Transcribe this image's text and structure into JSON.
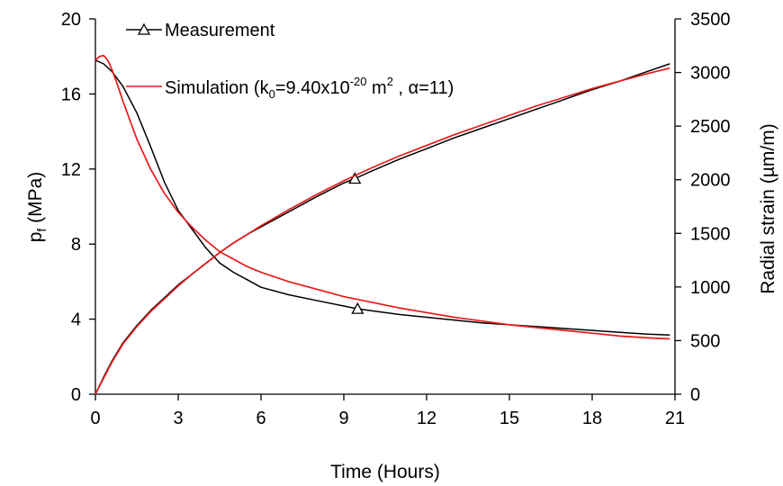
{
  "chart_data": {
    "type": "line",
    "title": "",
    "xlabel": "Time (Hours)",
    "ylabel_left_main": "p",
    "ylabel_left_sub": "f",
    "ylabel_left_unit": " (MPa)",
    "ylabel_right": "Radial strain (µm/m)",
    "xlim": [
      0,
      21
    ],
    "ylim_left": [
      0,
      20
    ],
    "ylim_right": [
      0,
      3500
    ],
    "x_ticks": [
      "0",
      "3",
      "6",
      "9",
      "12",
      "15",
      "18",
      "21"
    ],
    "y_left_ticks": [
      "0",
      "4",
      "8",
      "12",
      "16",
      "20"
    ],
    "y_right_ticks": [
      "0",
      "500",
      "1000",
      "1500",
      "2000",
      "2500",
      "3000",
      "3500"
    ],
    "grid": false,
    "legend_position": "top-left",
    "legend": {
      "measurement": "Measurement",
      "sim_prefix": "Simulation (k",
      "sim_sub": "0",
      "sim_mid": "=9.40x10",
      "sim_sup": "-20",
      "sim_m": " m",
      "sim_sup2": "2",
      "sim_suffix": " , α=11)"
    },
    "colors": {
      "measurement": "#000000",
      "simulation": "#e8191b"
    },
    "series": [
      {
        "name": "Measurement",
        "axis": "left",
        "marker": "triangle",
        "marker_x": 9.5,
        "points": [
          [
            0,
            17.8
          ],
          [
            0.3,
            17.6
          ],
          [
            0.6,
            17.2
          ],
          [
            1.0,
            16.4
          ],
          [
            1.5,
            15.0
          ],
          [
            2.0,
            13.2
          ],
          [
            2.5,
            11.3
          ],
          [
            3.0,
            9.8
          ],
          [
            3.5,
            8.8
          ],
          [
            4.0,
            7.8
          ],
          [
            4.5,
            7.0
          ],
          [
            5.0,
            6.5
          ],
          [
            5.5,
            6.1
          ],
          [
            6.0,
            5.7
          ],
          [
            7.0,
            5.3
          ],
          [
            8.0,
            5.0
          ],
          [
            9.0,
            4.7
          ],
          [
            9.5,
            4.55
          ],
          [
            10.0,
            4.45
          ],
          [
            11.0,
            4.25
          ],
          [
            12.0,
            4.1
          ],
          [
            13.0,
            3.95
          ],
          [
            14.0,
            3.8
          ],
          [
            15.0,
            3.7
          ],
          [
            16.0,
            3.6
          ],
          [
            17.0,
            3.5
          ],
          [
            18.0,
            3.4
          ],
          [
            19.0,
            3.3
          ],
          [
            20.0,
            3.2
          ],
          [
            20.8,
            3.15
          ]
        ]
      },
      {
        "name": "Measurement",
        "axis": "right",
        "marker": "triangle",
        "marker_x": 9.4,
        "points": [
          [
            0,
            0
          ],
          [
            0.3,
            160
          ],
          [
            0.6,
            310
          ],
          [
            1.0,
            480
          ],
          [
            1.5,
            640
          ],
          [
            2.0,
            780
          ],
          [
            2.5,
            900
          ],
          [
            3.0,
            1020
          ],
          [
            3.5,
            1120
          ],
          [
            4.0,
            1220
          ],
          [
            4.5,
            1320
          ],
          [
            5.0,
            1410
          ],
          [
            5.5,
            1490
          ],
          [
            6.0,
            1560
          ],
          [
            7.0,
            1700
          ],
          [
            8.0,
            1840
          ],
          [
            9.0,
            1970
          ],
          [
            9.4,
            2010
          ],
          [
            10.0,
            2080
          ],
          [
            11.0,
            2190
          ],
          [
            12.0,
            2290
          ],
          [
            13.0,
            2390
          ],
          [
            14.0,
            2480
          ],
          [
            15.0,
            2570
          ],
          [
            16.0,
            2660
          ],
          [
            17.0,
            2750
          ],
          [
            18.0,
            2840
          ],
          [
            19.0,
            2920
          ],
          [
            20.0,
            3010
          ],
          [
            20.8,
            3080
          ]
        ]
      },
      {
        "name": "Simulation (k0=9.40x10-20 m2 , α=11)",
        "axis": "left",
        "points": [
          [
            0,
            17.8
          ],
          [
            0.15,
            18.0
          ],
          [
            0.3,
            18.05
          ],
          [
            0.45,
            17.8
          ],
          [
            0.6,
            17.3
          ],
          [
            0.8,
            16.5
          ],
          [
            1.0,
            15.6
          ],
          [
            1.5,
            13.6
          ],
          [
            2.0,
            12.0
          ],
          [
            2.5,
            10.7
          ],
          [
            3.0,
            9.7
          ],
          [
            3.5,
            8.9
          ],
          [
            4.0,
            8.2
          ],
          [
            4.5,
            7.6
          ],
          [
            5.0,
            7.2
          ],
          [
            5.5,
            6.8
          ],
          [
            6.0,
            6.5
          ],
          [
            7.0,
            6.0
          ],
          [
            8.0,
            5.6
          ],
          [
            9.0,
            5.2
          ],
          [
            10.0,
            4.9
          ],
          [
            11.0,
            4.6
          ],
          [
            12.0,
            4.35
          ],
          [
            13.0,
            4.1
          ],
          [
            14.0,
            3.9
          ],
          [
            15.0,
            3.7
          ],
          [
            16.0,
            3.55
          ],
          [
            17.0,
            3.4
          ],
          [
            18.0,
            3.25
          ],
          [
            19.0,
            3.1
          ],
          [
            20.0,
            3.0
          ],
          [
            20.8,
            2.95
          ]
        ]
      },
      {
        "name": "Simulation (k0=9.40x10-20 m2 , α=11)",
        "axis": "right",
        "points": [
          [
            0,
            0
          ],
          [
            0.3,
            150
          ],
          [
            0.6,
            300
          ],
          [
            1.0,
            470
          ],
          [
            1.5,
            630
          ],
          [
            2.0,
            770
          ],
          [
            2.5,
            890
          ],
          [
            3.0,
            1010
          ],
          [
            3.5,
            1120
          ],
          [
            4.0,
            1220
          ],
          [
            4.5,
            1320
          ],
          [
            5.0,
            1410
          ],
          [
            5.5,
            1490
          ],
          [
            6.0,
            1570
          ],
          [
            7.0,
            1720
          ],
          [
            8.0,
            1860
          ],
          [
            9.0,
            1990
          ],
          [
            10.0,
            2110
          ],
          [
            11.0,
            2220
          ],
          [
            12.0,
            2320
          ],
          [
            13.0,
            2420
          ],
          [
            14.0,
            2510
          ],
          [
            15.0,
            2600
          ],
          [
            16.0,
            2690
          ],
          [
            17.0,
            2770
          ],
          [
            18.0,
            2850
          ],
          [
            19.0,
            2920
          ],
          [
            20.0,
            2990
          ],
          [
            20.8,
            3040
          ]
        ]
      }
    ]
  }
}
